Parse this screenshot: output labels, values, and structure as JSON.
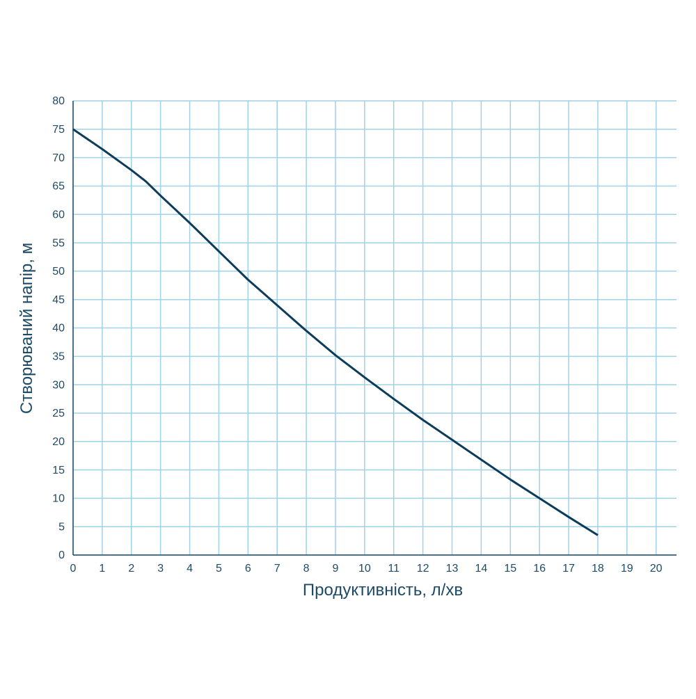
{
  "chart_data": {
    "type": "line",
    "x_label": "Продуктивність, л/хв",
    "y_label": "Створюваний напір, м",
    "x": [
      0,
      1,
      2,
      2.5,
      3,
      4,
      5,
      6,
      7,
      8,
      9,
      10,
      11,
      12,
      13,
      14,
      15,
      16,
      17,
      18
    ],
    "series": [
      {
        "color": "#0d3b5a",
        "values": [
          75,
          71.5,
          67.8,
          65.8,
          63.3,
          58.5,
          53.5,
          48.5,
          44,
          39.5,
          35.2,
          31.3,
          27.5,
          23.8,
          20.3,
          16.8,
          13.3,
          10,
          6.7,
          3.5
        ]
      }
    ],
    "xlim": [
      0,
      20.7
    ],
    "ylim": [
      0,
      80
    ],
    "xticks": [
      0,
      1,
      2,
      3,
      4,
      5,
      6,
      7,
      8,
      9,
      10,
      11,
      12,
      13,
      14,
      15,
      16,
      17,
      18,
      19,
      20
    ],
    "yticks": [
      0,
      5,
      10,
      15,
      20,
      25,
      30,
      35,
      40,
      45,
      50,
      55,
      60,
      65,
      70,
      75,
      80
    ],
    "grid": true
  }
}
